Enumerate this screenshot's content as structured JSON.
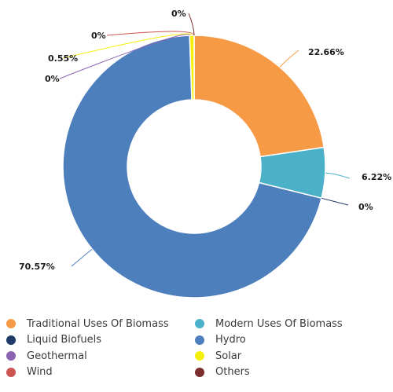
{
  "chart_data": {
    "type": "pie",
    "donut": true,
    "legend_position": "bottom",
    "categories": [
      "Traditional Uses Of Biomass",
      "Modern Uses Of Biomass",
      "Liquid Biofuels",
      "Hydro",
      "Geothermal",
      "Solar",
      "Wind",
      "Others"
    ],
    "values": [
      22.66,
      6.22,
      0,
      70.57,
      0,
      0.55,
      0,
      0
    ],
    "labels": [
      "22.66%",
      "6.22%",
      "0%",
      "70.57%",
      "0%",
      "0.55%",
      "0%",
      "0%"
    ],
    "colors": [
      "#f79a45",
      "#4bb1c8",
      "#1f3a68",
      "#4e7fbd",
      "#8e62b3",
      "#f5f00a",
      "#cd5450",
      "#7a2e2e"
    ]
  }
}
